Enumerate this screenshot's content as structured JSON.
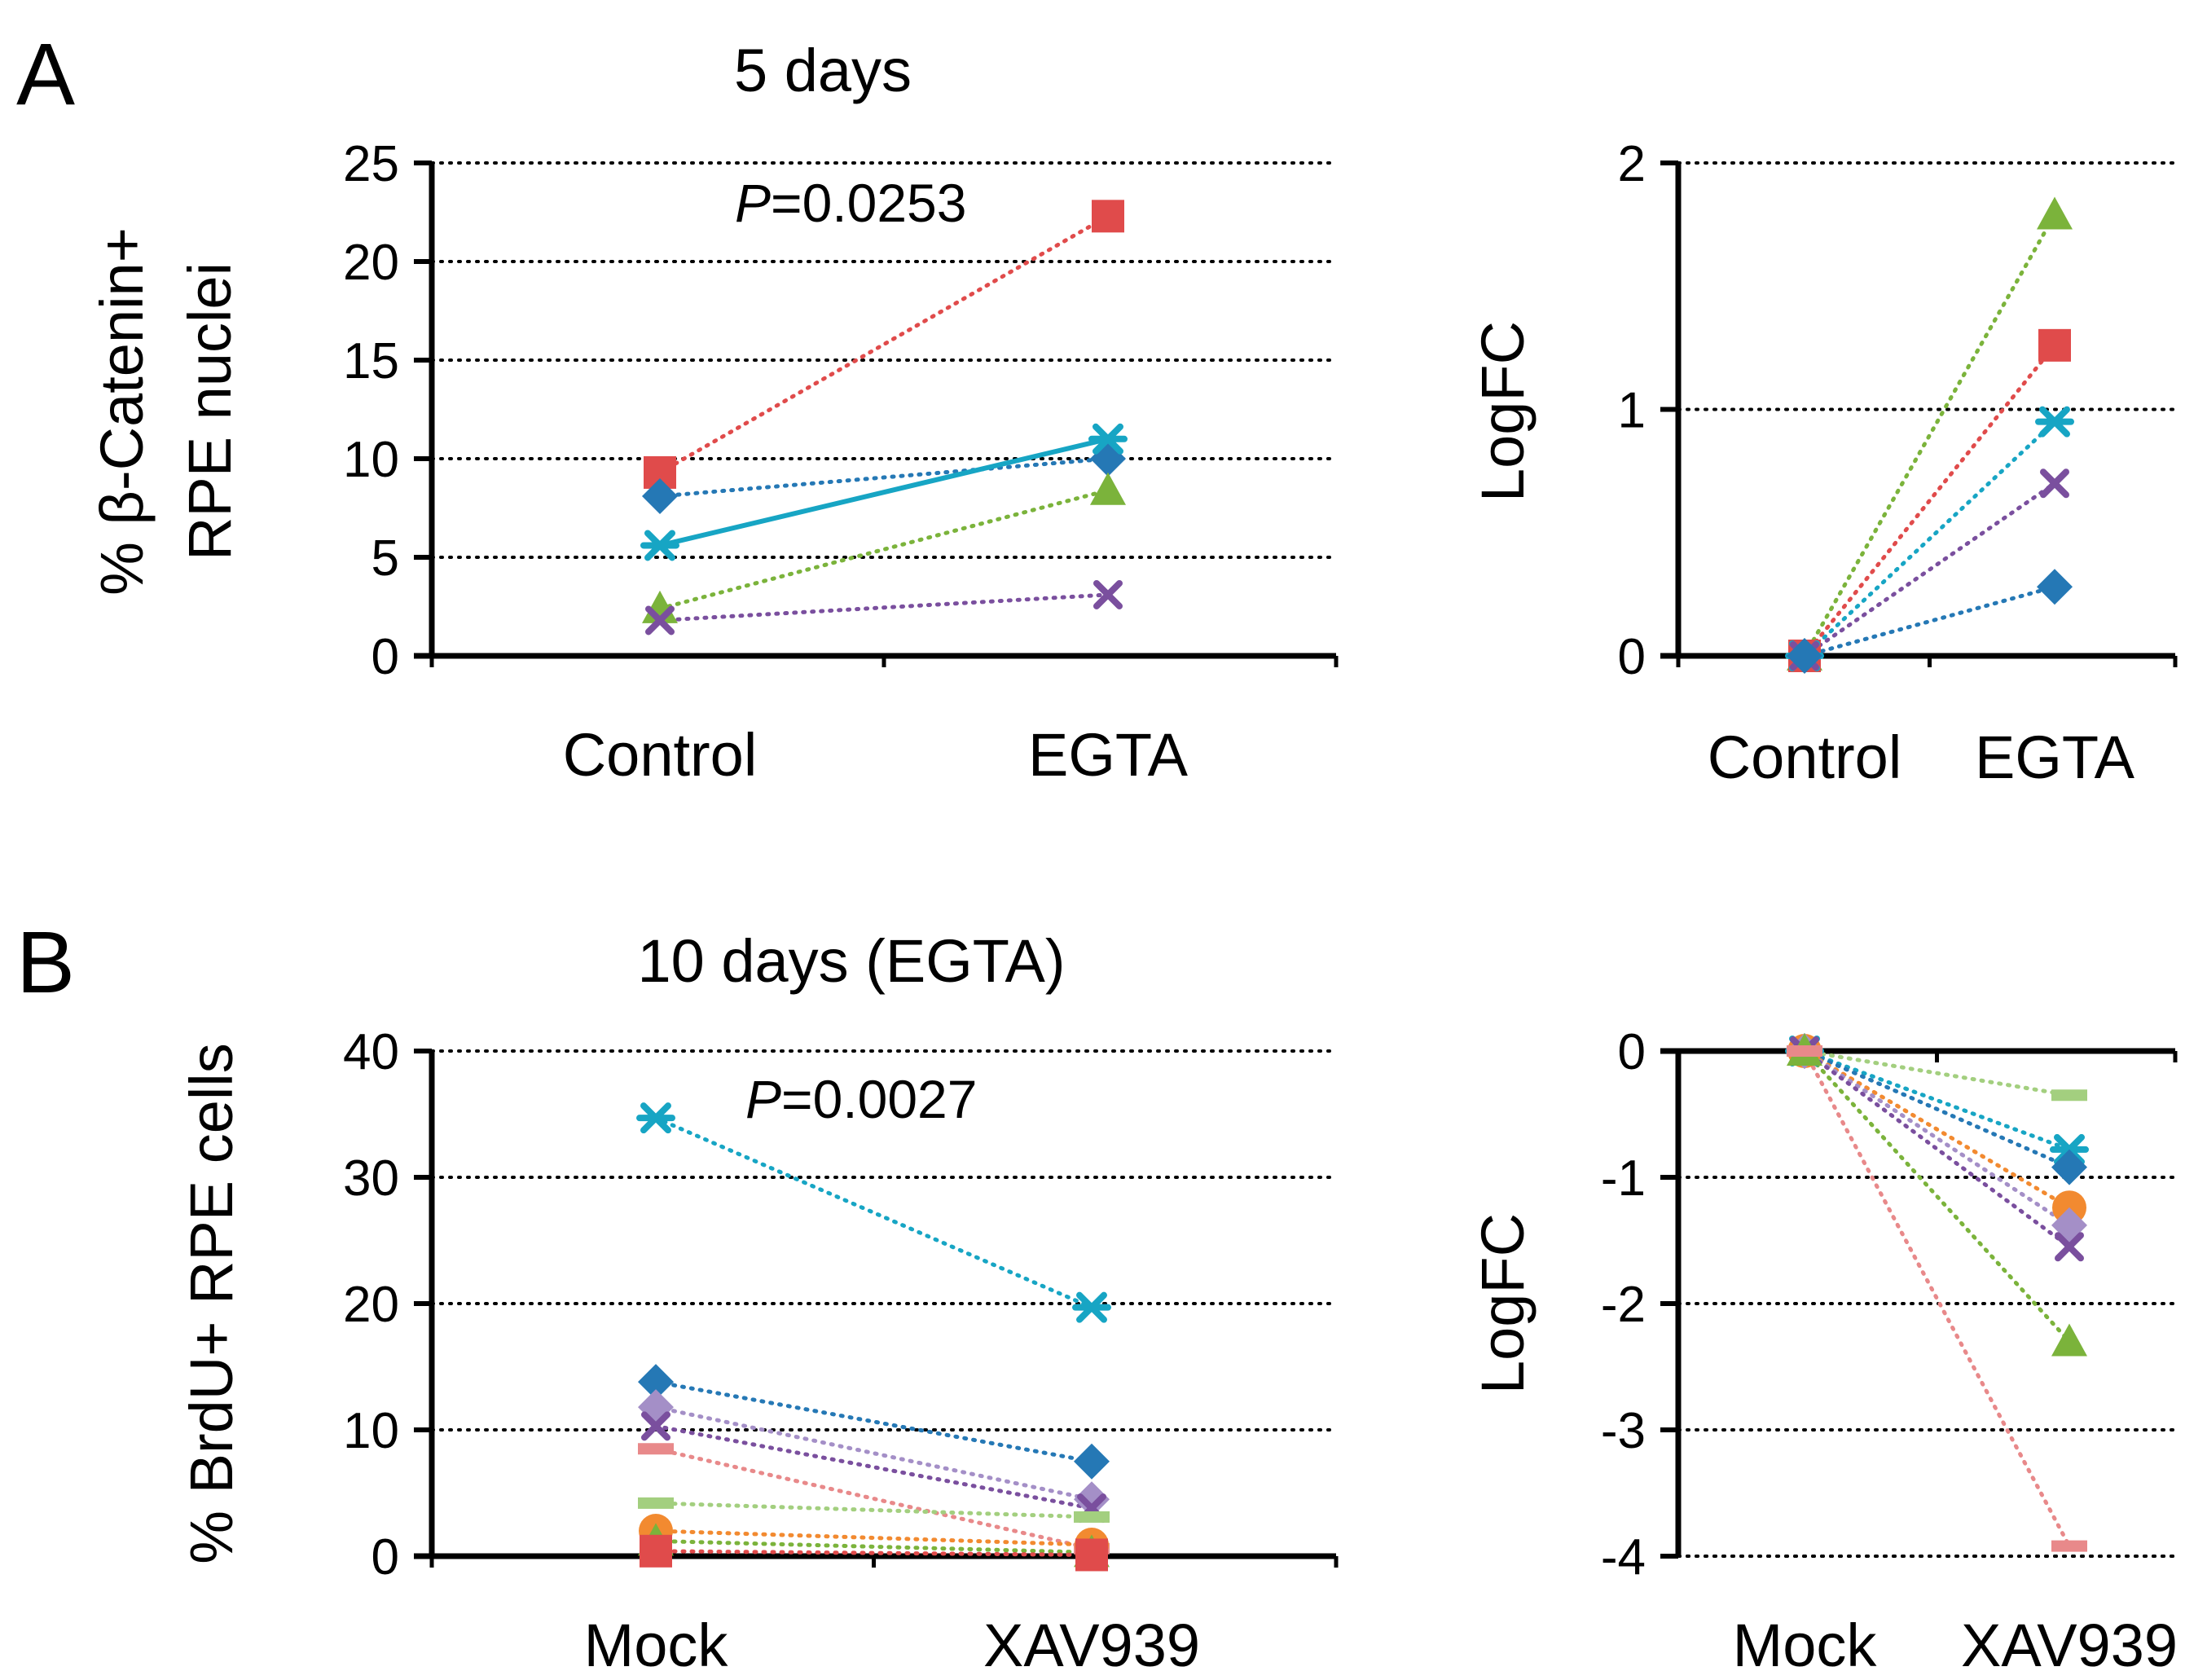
{
  "figure": {
    "panel_labels": [
      "A",
      "B"
    ],
    "pvalue_prefix": "P"
  },
  "chart_data": [
    {
      "id": "A-left",
      "type": "line",
      "title": "5 days",
      "panel_label": "A",
      "ylabel_lines": [
        "% β-Catenin+",
        "RPE nuclei"
      ],
      "xlabel": "",
      "categories": [
        "Control",
        "EGTA"
      ],
      "ylim": [
        0,
        25
      ],
      "yticks": [
        0,
        5,
        10,
        15,
        20,
        25
      ],
      "ytick_labels": [
        "0",
        "5",
        "10",
        "15",
        "20",
        "25"
      ],
      "grid": true,
      "annotation": {
        "text": "=0.0253",
        "prefix": "P"
      },
      "series": [
        {
          "name": "red",
          "color": "#e04b4b",
          "marker": "square",
          "values": [
            9.3,
            22.3
          ],
          "dash": true
        },
        {
          "name": "blue",
          "color": "#2578b5",
          "marker": "diamond",
          "values": [
            8.1,
            10.0
          ],
          "dash": true
        },
        {
          "name": "cyan",
          "color": "#17a5c4",
          "marker": "star",
          "values": [
            5.6,
            11.0
          ],
          "dash": false
        },
        {
          "name": "green",
          "color": "#7bb33b",
          "marker": "triangle",
          "values": [
            2.4,
            8.4
          ],
          "dash": true
        },
        {
          "name": "purple",
          "color": "#7a4f9e",
          "marker": "x",
          "values": [
            1.8,
            3.1
          ],
          "dash": true
        }
      ]
    },
    {
      "id": "A-right",
      "type": "line",
      "title": "",
      "ylabel_lines": [
        "LogFC"
      ],
      "categories": [
        "Control",
        "EGTA"
      ],
      "ylim": [
        0,
        2
      ],
      "yticks": [
        0,
        1,
        2
      ],
      "ytick_labels": [
        "0",
        "1",
        "2"
      ],
      "grid": true,
      "series": [
        {
          "name": "green",
          "color": "#7bb33b",
          "marker": "triangle",
          "values": [
            0,
            1.79
          ],
          "dash": true
        },
        {
          "name": "red",
          "color": "#e04b4b",
          "marker": "square",
          "values": [
            0,
            1.26
          ],
          "dash": true
        },
        {
          "name": "cyan",
          "color": "#17a5c4",
          "marker": "star",
          "values": [
            0,
            0.95
          ],
          "dash": true
        },
        {
          "name": "purple",
          "color": "#7a4f9e",
          "marker": "x",
          "values": [
            0,
            0.7
          ],
          "dash": true
        },
        {
          "name": "blue",
          "color": "#2578b5",
          "marker": "diamond",
          "values": [
            0,
            0.28
          ],
          "dash": true
        }
      ]
    },
    {
      "id": "B-left",
      "type": "line",
      "title": "10 days (EGTA)",
      "panel_label": "B",
      "ylabel_lines": [
        "% BrdU+ RPE cells"
      ],
      "categories": [
        "Mock",
        "XAV939"
      ],
      "ylim": [
        0,
        40
      ],
      "yticks": [
        0,
        10,
        20,
        30,
        40
      ],
      "ytick_labels": [
        "0",
        "10",
        "20",
        "30",
        "40"
      ],
      "grid": true,
      "annotation": {
        "text": "=0.0027",
        "prefix": "P"
      },
      "series": [
        {
          "name": "cyan",
          "color": "#17a5c4",
          "marker": "star",
          "values": [
            34.7,
            19.7
          ],
          "dash": true
        },
        {
          "name": "blue",
          "color": "#2578b5",
          "marker": "diamond",
          "values": [
            13.8,
            7.5
          ],
          "dash": true
        },
        {
          "name": "lavender",
          "color": "#a48fc7",
          "marker": "diamond",
          "values": [
            11.8,
            4.5
          ],
          "dash": true
        },
        {
          "name": "purple",
          "color": "#7a4f9e",
          "marker": "x",
          "values": [
            10.3,
            3.8
          ],
          "dash": true
        },
        {
          "name": "pink",
          "color": "#e8898a",
          "marker": "dash",
          "values": [
            8.5,
            0.6
          ],
          "dash": true
        },
        {
          "name": "lightgreen",
          "color": "#a3cf7f",
          "marker": "dash",
          "values": [
            4.2,
            3.1
          ],
          "dash": true
        },
        {
          "name": "orange",
          "color": "#f28a30",
          "marker": "circle",
          "values": [
            2.0,
            0.9
          ],
          "dash": true
        },
        {
          "name": "green",
          "color": "#7bb33b",
          "marker": "triangle",
          "values": [
            1.2,
            0.3
          ],
          "dash": true
        },
        {
          "name": "red",
          "color": "#e04b4b",
          "marker": "square",
          "values": [
            0.4,
            0.1
          ],
          "dash": true
        }
      ]
    },
    {
      "id": "B-right",
      "type": "line",
      "title": "",
      "ylabel_lines": [
        "LogFC"
      ],
      "categories": [
        "Mock",
        "XAV939"
      ],
      "ylim": [
        -4,
        0
      ],
      "yticks": [
        0,
        -1,
        -2,
        -3,
        -4
      ],
      "ytick_labels": [
        "0",
        "-1",
        "-2",
        "-3",
        "-4"
      ],
      "grid": true,
      "series": [
        {
          "name": "lightgreen",
          "color": "#a3cf7f",
          "marker": "dash",
          "values": [
            0,
            -0.35
          ],
          "dash": true
        },
        {
          "name": "cyan",
          "color": "#17a5c4",
          "marker": "star",
          "values": [
            0,
            -0.78
          ],
          "dash": true
        },
        {
          "name": "blue",
          "color": "#2578b5",
          "marker": "diamond",
          "values": [
            0,
            -0.92
          ],
          "dash": true
        },
        {
          "name": "orange",
          "color": "#f28a30",
          "marker": "circle",
          "values": [
            0,
            -1.24
          ],
          "dash": true
        },
        {
          "name": "lavender",
          "color": "#a48fc7",
          "marker": "diamond",
          "values": [
            0,
            -1.38
          ],
          "dash": true
        },
        {
          "name": "purple",
          "color": "#7a4f9e",
          "marker": "x",
          "values": [
            0,
            -1.55
          ],
          "dash": true
        },
        {
          "name": "green",
          "color": "#7bb33b",
          "marker": "triangle",
          "values": [
            0,
            -2.3
          ],
          "dash": true
        },
        {
          "name": "pink",
          "color": "#e8898a",
          "marker": "dash",
          "values": [
            0,
            -3.92
          ],
          "dash": true
        }
      ]
    }
  ]
}
